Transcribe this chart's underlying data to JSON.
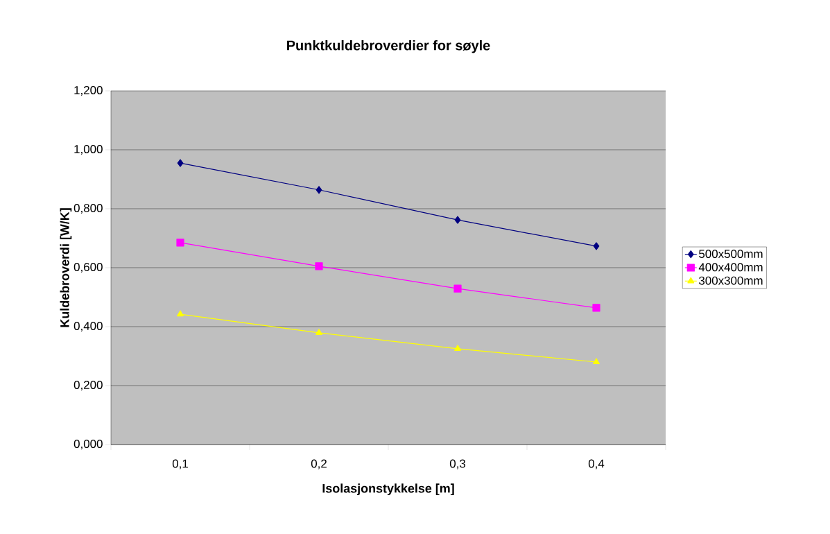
{
  "chart_data": {
    "type": "line",
    "title": "Punktkuldebroverdier for søyle",
    "xlabel": "Isolasjonstykkelse [m]",
    "ylabel": "Kuldebroverdi [W/K]",
    "categories": [
      "0,1",
      "0,2",
      "0,3",
      "0,4"
    ],
    "series": [
      {
        "name": "500x500mm",
        "color": "#000080",
        "marker": "diamond",
        "values": [
          0.955,
          0.864,
          0.762,
          0.673
        ]
      },
      {
        "name": "400x400mm",
        "color": "#ff00ff",
        "marker": "square",
        "values": [
          0.685,
          0.605,
          0.529,
          0.464
        ]
      },
      {
        "name": "300x300mm",
        "color": "#ffff00",
        "marker": "triangle",
        "values": [
          0.442,
          0.379,
          0.325,
          0.28
        ]
      }
    ],
    "ylim": [
      0,
      1.2
    ],
    "yticks": [
      {
        "value": 0,
        "label": "0,000"
      },
      {
        "value": 0.2,
        "label": "0,200"
      },
      {
        "value": 0.4,
        "label": "0,400"
      },
      {
        "value": 0.6,
        "label": "0,600"
      },
      {
        "value": 0.8,
        "label": "0,800"
      },
      {
        "value": 1.0,
        "label": "1,000"
      },
      {
        "value": 1.2,
        "label": "1,200"
      }
    ],
    "grid": "y",
    "legend": "right",
    "line_style": "solid"
  }
}
